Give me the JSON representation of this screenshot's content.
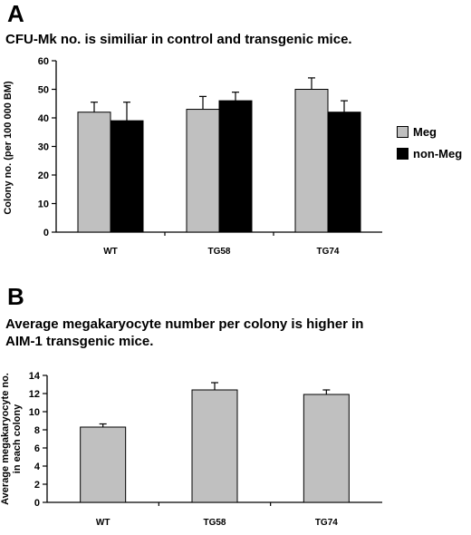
{
  "panels": [
    {
      "letter": "A",
      "title": "CFU-Mk no. is similiar in control and transgenic mice.",
      "legend": {
        "items": [
          {
            "label": "Meg",
            "color": "#c0c0c0"
          },
          {
            "label": "non-Meg",
            "color": "#000000"
          }
        ]
      }
    },
    {
      "letter": "B",
      "title_lines": [
        "Average megakaryocyte number per colony is higher in",
        "AIM-1 transgenic mice."
      ]
    }
  ],
  "chart_data": [
    {
      "type": "bar",
      "title": "CFU-Mk no. is similiar in control and transgenic mice.",
      "ylabel": "Colony no. (per 100 000 BM)",
      "xlabel": "",
      "categories": [
        "WT",
        "TG58",
        "TG74"
      ],
      "ylim": [
        0,
        60
      ],
      "yticks": [
        0,
        10,
        20,
        30,
        40,
        50,
        60
      ],
      "legend_position": "right",
      "grid": false,
      "series": [
        {
          "name": "Meg",
          "color": "#c0c0c0",
          "values": [
            42,
            43,
            50
          ],
          "errors": [
            3.5,
            4.5,
            4
          ]
        },
        {
          "name": "non-Meg",
          "color": "#000000",
          "values": [
            39,
            46,
            42
          ],
          "errors": [
            6.5,
            3,
            4
          ]
        }
      ]
    },
    {
      "type": "bar",
      "title": "Average megakaryocyte number per colony is higher in AIM-1 transgenic mice.",
      "ylabel": "Average megakaryocyte no. in each colony",
      "ylabel_lines": [
        "Average megakaryocyte no.",
        "in each colony"
      ],
      "xlabel": "",
      "categories": [
        "WT",
        "TG58",
        "TG74"
      ],
      "ylim": [
        0,
        14
      ],
      "yticks": [
        0,
        2,
        4,
        6,
        8,
        10,
        12,
        14
      ],
      "grid": false,
      "series": [
        {
          "color": "#c0c0c0",
          "values": [
            8.3,
            12.4,
            11.9
          ],
          "errors": [
            0.35,
            0.8,
            0.5
          ]
        }
      ]
    }
  ]
}
